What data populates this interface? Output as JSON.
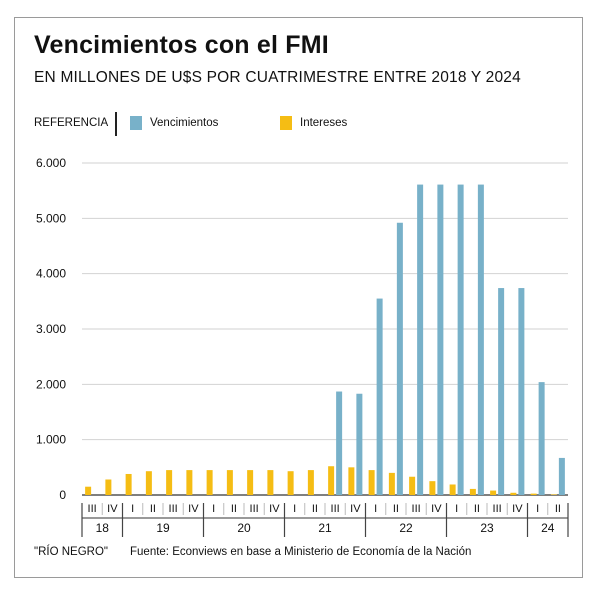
{
  "title": "Vencimientos con el FMI",
  "subtitle": "EN MILLONES DE U$S POR CUATRIMESTRE ENTRE 2018 Y 2024",
  "legend": {
    "title": "REFERENCIA",
    "items": [
      {
        "label": "Vencimientos",
        "color": "#78b1c9"
      },
      {
        "label": "Intereses",
        "color": "#f5bd14"
      }
    ]
  },
  "footer": {
    "credit": "\"RÍO NEGRO\"",
    "source": "Fuente: Econviews en base a Ministerio de Economía de la Nación"
  },
  "chart_data": {
    "type": "bar",
    "ylim": [
      0,
      6000
    ],
    "y_ticks": [
      0,
      1000,
      2000,
      3000,
      4000,
      5000,
      6000
    ],
    "y_tick_labels": [
      "0",
      "1.000",
      "2.000",
      "3.000",
      "4.000",
      "5.000",
      "6.000"
    ],
    "grid": true,
    "legend_position": "top-left",
    "categories": [
      "III",
      "IV",
      "I",
      "II",
      "III",
      "IV",
      "I",
      "II",
      "III",
      "IV",
      "I",
      "II",
      "III",
      "IV",
      "I",
      "II",
      "III",
      "IV",
      "I",
      "II",
      "III",
      "IV",
      "I",
      "II"
    ],
    "year_groups": [
      {
        "label": "18",
        "count": 2
      },
      {
        "label": "19",
        "count": 4
      },
      {
        "label": "20",
        "count": 4
      },
      {
        "label": "21",
        "count": 4
      },
      {
        "label": "22",
        "count": 4
      },
      {
        "label": "23",
        "count": 4
      },
      {
        "label": "24",
        "count": 2
      }
    ],
    "series": [
      {
        "name": "Vencimientos",
        "color": "#78b1c9",
        "values": [
          0,
          0,
          0,
          0,
          0,
          0,
          0,
          0,
          0,
          0,
          0,
          0,
          1870,
          1830,
          3550,
          4920,
          5610,
          5610,
          5610,
          5610,
          3740,
          3740,
          2040,
          670
        ]
      },
      {
        "name": "Intereses",
        "color": "#f5bd14",
        "values": [
          150,
          280,
          380,
          430,
          450,
          450,
          450,
          450,
          450,
          450,
          430,
          450,
          520,
          500,
          450,
          400,
          330,
          250,
          190,
          110,
          80,
          40,
          25,
          10
        ]
      }
    ]
  }
}
